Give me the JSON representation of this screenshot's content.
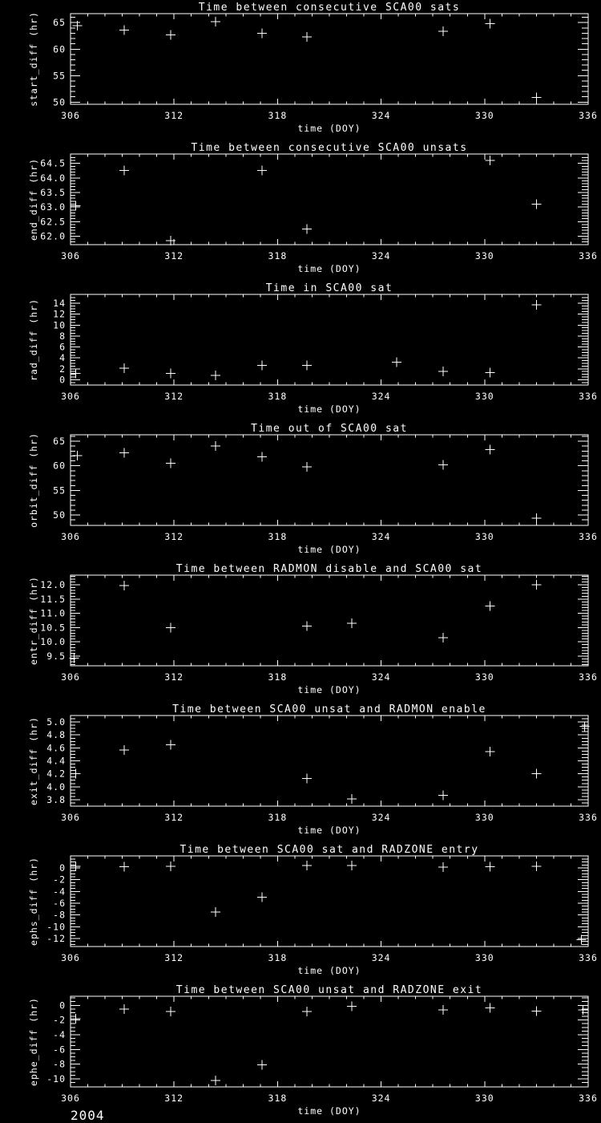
{
  "page": {
    "background": "#000000",
    "foreground": "#ffffff",
    "year_annotation": "2004"
  },
  "chart_data": [
    {
      "type": "scatter",
      "title": "Time between consecutive SCA00 sats",
      "xlabel": "time (DOY)",
      "ylabel": "start_diff (hr)",
      "marker": "plus",
      "grid": false,
      "xlim": [
        306,
        336
      ],
      "xticks": [
        306,
        312,
        318,
        324,
        330,
        336
      ],
      "xtick_labels": [
        "306",
        "312",
        "318",
        "324",
        "330",
        "336"
      ],
      "x_minor_step": 1,
      "ylim": [
        49.6,
        66.7
      ],
      "yticks": [
        50,
        55,
        60,
        65
      ],
      "ytick_labels": [
        "50",
        "55",
        "60",
        "65"
      ],
      "y_minor_step": 1,
      "points": [
        [
          306.4,
          64.4
        ],
        [
          309.1,
          63.6
        ],
        [
          311.8,
          62.7
        ],
        [
          314.4,
          65.2
        ],
        [
          317.1,
          63.0
        ],
        [
          319.7,
          62.3
        ],
        [
          327.6,
          63.4
        ],
        [
          330.3,
          64.8
        ],
        [
          333.0,
          50.9
        ]
      ]
    },
    {
      "type": "scatter",
      "title": "Time between consecutive SCA00 unsats",
      "xlabel": "time (DOY)",
      "ylabel": "end_diff (hr)",
      "marker": "plus",
      "grid": false,
      "xlim": [
        306,
        336
      ],
      "xticks": [
        306,
        312,
        318,
        324,
        330,
        336
      ],
      "xtick_labels": [
        "306",
        "312",
        "318",
        "324",
        "330",
        "336"
      ],
      "x_minor_step": 1,
      "ylim": [
        61.71,
        64.82
      ],
      "yticks": [
        62.0,
        62.5,
        63.0,
        63.5,
        64.0,
        64.5
      ],
      "ytick_labels": [
        "62.0",
        "62.5",
        "63.0",
        "63.5",
        "64.0",
        "64.5"
      ],
      "y_minor_step": 0.1,
      "points": [
        [
          306.3,
          63.05
        ],
        [
          309.1,
          64.25
        ],
        [
          311.8,
          61.85
        ],
        [
          317.1,
          64.25
        ],
        [
          319.7,
          62.25
        ],
        [
          330.3,
          64.6
        ],
        [
          333.0,
          63.1
        ]
      ]
    },
    {
      "type": "scatter",
      "title": "Time in SCA00 sat",
      "xlabel": "time (DOY)",
      "ylabel": "rad_diff (hr)",
      "marker": "plus",
      "grid": false,
      "xlim": [
        306,
        336
      ],
      "xticks": [
        306,
        312,
        318,
        324,
        330,
        336
      ],
      "xtick_labels": [
        "306",
        "312",
        "318",
        "324",
        "330",
        "336"
      ],
      "x_minor_step": 1,
      "ylim": [
        -0.96,
        15.62
      ],
      "yticks": [
        0,
        2,
        4,
        6,
        8,
        10,
        12,
        14
      ],
      "ytick_labels": [
        "0",
        "2",
        "4",
        "6",
        "8",
        "10",
        "12",
        "14"
      ],
      "y_minor_step": 0.5,
      "points": [
        [
          306.3,
          1.2
        ],
        [
          309.1,
          2.1
        ],
        [
          311.8,
          1.2
        ],
        [
          314.4,
          0.8
        ],
        [
          317.1,
          2.6
        ],
        [
          319.7,
          2.6
        ],
        [
          324.9,
          3.2
        ],
        [
          327.6,
          1.5
        ],
        [
          330.3,
          1.3
        ],
        [
          333.0,
          13.7
        ]
      ]
    },
    {
      "type": "scatter",
      "title": "Time out of SCA00 sat",
      "xlabel": "time (DOY)",
      "ylabel": "orbit_diff (hr)",
      "marker": "plus",
      "grid": false,
      "xlim": [
        306,
        336
      ],
      "xticks": [
        306,
        312,
        318,
        324,
        330,
        336
      ],
      "xtick_labels": [
        "306",
        "312",
        "318",
        "324",
        "330",
        "336"
      ],
      "x_minor_step": 1,
      "ylim": [
        47.9,
        66.3
      ],
      "yticks": [
        50,
        55,
        60,
        65
      ],
      "ytick_labels": [
        "50",
        "55",
        "60",
        "65"
      ],
      "y_minor_step": 1,
      "points": [
        [
          306.4,
          62.1
        ],
        [
          309.1,
          62.6
        ],
        [
          311.8,
          60.5
        ],
        [
          314.4,
          64.0
        ],
        [
          317.1,
          61.8
        ],
        [
          319.7,
          59.8
        ],
        [
          327.6,
          60.2
        ],
        [
          330.3,
          63.3
        ],
        [
          333.0,
          49.4
        ]
      ]
    },
    {
      "type": "scatter",
      "title": "Time between RADMON disable and SCA00 sat",
      "xlabel": "time (DOY)",
      "ylabel": "entr_diff (hr)",
      "marker": "plus",
      "grid": false,
      "xlim": [
        306,
        336
      ],
      "xticks": [
        306,
        312,
        318,
        324,
        330,
        336
      ],
      "xtick_labels": [
        "306",
        "312",
        "318",
        "324",
        "330",
        "336"
      ],
      "x_minor_step": 1,
      "ylim": [
        9.16,
        12.34
      ],
      "yticks": [
        9.5,
        10.0,
        10.5,
        11.0,
        11.5,
        12.0
      ],
      "ytick_labels": [
        "9.5",
        "10.0",
        "10.5",
        "11.0",
        "11.5",
        "12.0"
      ],
      "y_minor_step": 0.1,
      "points": [
        [
          306.2,
          9.43
        ],
        [
          309.1,
          11.97
        ],
        [
          311.8,
          10.5
        ],
        [
          319.7,
          10.55
        ],
        [
          322.3,
          10.65
        ],
        [
          327.6,
          10.15
        ],
        [
          330.3,
          11.25
        ],
        [
          333.0,
          12.0
        ]
      ]
    },
    {
      "type": "scatter",
      "title": "Time between SCA00 unsat and RADMON enable",
      "xlabel": "time (DOY)",
      "ylabel": "exit_diff (hr)",
      "marker": "plus",
      "grid": false,
      "xlim": [
        306,
        336
      ],
      "xticks": [
        306,
        312,
        318,
        324,
        330,
        336
      ],
      "xtick_labels": [
        "306",
        "312",
        "318",
        "324",
        "330",
        "336"
      ],
      "x_minor_step": 1,
      "ylim": [
        3.7,
        5.1
      ],
      "yticks": [
        3.8,
        4.0,
        4.2,
        4.4,
        4.6,
        4.8,
        5.0
      ],
      "ytick_labels": [
        "3.8",
        "4.0",
        "4.2",
        "4.4",
        "4.6",
        "4.8",
        "5.0"
      ],
      "y_minor_step": 0.05,
      "points": [
        [
          306.3,
          4.2
        ],
        [
          309.1,
          4.57
        ],
        [
          311.8,
          4.65
        ],
        [
          319.7,
          4.13
        ],
        [
          322.3,
          3.81
        ],
        [
          327.6,
          3.87
        ],
        [
          330.3,
          4.54
        ],
        [
          333.0,
          4.2
        ],
        [
          335.8,
          4.93
        ]
      ]
    },
    {
      "type": "scatter",
      "title": "Time between SCA00 sat and RADZONE entry",
      "xlabel": "time (DOY)",
      "ylabel": "ephs_diff (hr)",
      "marker": "plus",
      "grid": false,
      "xlim": [
        306,
        336
      ],
      "xticks": [
        306,
        312,
        318,
        324,
        330,
        336
      ],
      "xtick_labels": [
        "306",
        "312",
        "318",
        "324",
        "330",
        "336"
      ],
      "x_minor_step": 1,
      "ylim": [
        -13.36,
        2.04
      ],
      "yticks": [
        -12,
        -10,
        -8,
        -6,
        -4,
        -2,
        0
      ],
      "ytick_labels": [
        "-12",
        "-10",
        "-8",
        "-6",
        "-4",
        "-2",
        "0"
      ],
      "y_minor_step": 0.5,
      "points": [
        [
          306.3,
          0.3
        ],
        [
          309.1,
          0.2
        ],
        [
          311.8,
          0.3
        ],
        [
          314.4,
          -7.5
        ],
        [
          317.1,
          -5.0
        ],
        [
          319.7,
          0.4
        ],
        [
          322.3,
          0.4
        ],
        [
          327.6,
          0.1
        ],
        [
          330.3,
          0.2
        ],
        [
          333.0,
          0.3
        ],
        [
          335.6,
          -12.2
        ]
      ]
    },
    {
      "type": "scatter",
      "title": "Time between SCA00 unsat and RADZONE exit",
      "xlabel": "time (DOY)",
      "ylabel": "ephe_diff (hr)",
      "marker": "plus",
      "grid": false,
      "xlim": [
        306,
        336
      ],
      "xticks": [
        306,
        312,
        318,
        324,
        330,
        336
      ],
      "xtick_labels": [
        "306",
        "312",
        "318",
        "324",
        "330",
        "336"
      ],
      "x_minor_step": 1,
      "ylim": [
        -11.09,
        1.23
      ],
      "yticks": [
        -10,
        -8,
        -6,
        -4,
        -2,
        0
      ],
      "ytick_labels": [
        "-10",
        "-8",
        "-6",
        "-4",
        "-2",
        "0"
      ],
      "y_minor_step": 0.5,
      "points": [
        [
          306.3,
          -1.8
        ],
        [
          309.1,
          -0.5
        ],
        [
          311.8,
          -0.85
        ],
        [
          314.4,
          -10.2
        ],
        [
          317.1,
          -8.1
        ],
        [
          319.7,
          -0.85
        ],
        [
          322.3,
          -0.15
        ],
        [
          327.6,
          -0.6
        ],
        [
          330.3,
          -0.35
        ],
        [
          333.0,
          -0.8
        ],
        [
          335.7,
          -0.6
        ]
      ]
    }
  ]
}
